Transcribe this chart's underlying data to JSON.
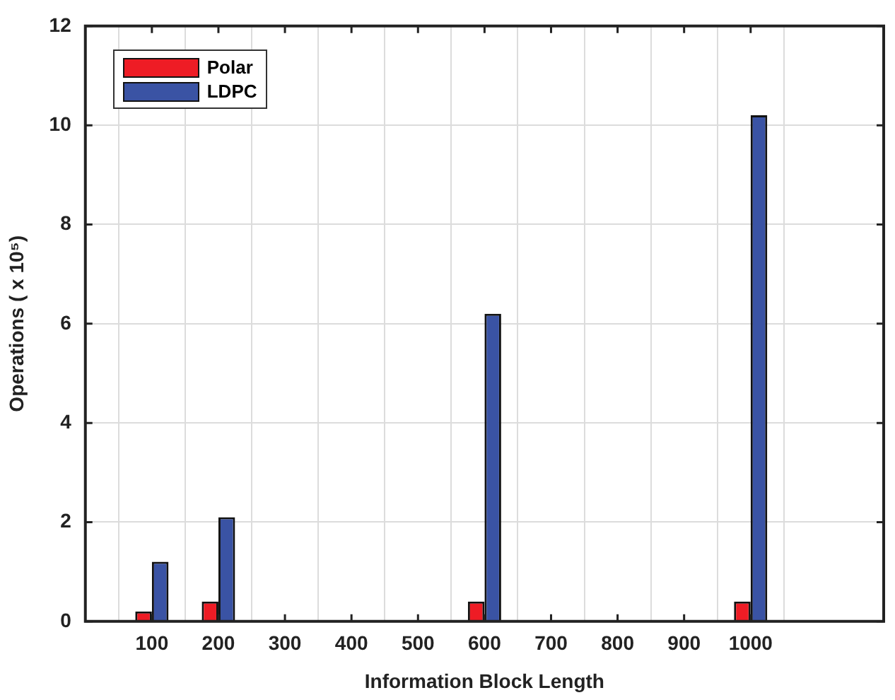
{
  "chart_data": {
    "type": "bar",
    "xlabel": "Information Block Length",
    "ylabel": "Operations ( x 10⁵)",
    "x": [
      100,
      200,
      600,
      1000
    ],
    "series": [
      {
        "name": "Polar",
        "color": "#ee1c25",
        "values": [
          0.2,
          0.4,
          0.4,
          0.4
        ]
      },
      {
        "name": "LDPC",
        "color": "#3a53a4",
        "values": [
          1.2,
          2.1,
          6.2,
          10.2
        ]
      }
    ],
    "xlim": [
      0,
      1200
    ],
    "xticks": [
      100,
      200,
      300,
      400,
      500,
      600,
      700,
      800,
      900,
      1000
    ],
    "ylim": [
      0,
      12
    ],
    "yticks": [
      0,
      2,
      4,
      6,
      8,
      10,
      12
    ],
    "grid": true,
    "legend": "top left"
  }
}
